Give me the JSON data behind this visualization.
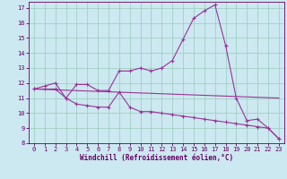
{
  "xlabel": "Windchill (Refroidissement éolien,°C)",
  "bg_color": "#cce8f0",
  "grid_color": "#99ccbb",
  "line_color": "#993399",
  "xlim": [
    -0.5,
    23.5
  ],
  "ylim": [
    8,
    17.4
  ],
  "yticks": [
    8,
    9,
    10,
    11,
    12,
    13,
    14,
    15,
    16,
    17
  ],
  "xticks": [
    0,
    1,
    2,
    3,
    4,
    5,
    6,
    7,
    8,
    9,
    10,
    11,
    12,
    13,
    14,
    15,
    16,
    17,
    18,
    19,
    20,
    21,
    22,
    23
  ],
  "series1_x": [
    0,
    1,
    2,
    3,
    4,
    5,
    6,
    7,
    8,
    9,
    10,
    11,
    12,
    13,
    14,
    15,
    16,
    17,
    18,
    19,
    20,
    21,
    22,
    23
  ],
  "series1_y": [
    11.6,
    11.8,
    12.0,
    11.0,
    11.9,
    11.9,
    11.5,
    11.5,
    12.8,
    12.8,
    13.0,
    12.8,
    13.0,
    13.5,
    14.9,
    16.3,
    16.8,
    17.2,
    14.5,
    11.0,
    9.5,
    9.6,
    9.0,
    8.3
  ],
  "series2_x": [
    0,
    1,
    2,
    3,
    4,
    5,
    6,
    7,
    8,
    9,
    10,
    11,
    12,
    13,
    14,
    15,
    16,
    17,
    18,
    19,
    20,
    21,
    22,
    23
  ],
  "series2_y": [
    11.6,
    11.6,
    11.6,
    11.0,
    10.6,
    10.5,
    10.4,
    10.4,
    11.4,
    10.4,
    10.1,
    10.1,
    10.0,
    9.9,
    9.8,
    9.7,
    9.6,
    9.5,
    9.4,
    9.3,
    9.2,
    9.1,
    9.0,
    8.3
  ],
  "series3_x": [
    0,
    23
  ],
  "series3_y": [
    11.6,
    11.0
  ]
}
